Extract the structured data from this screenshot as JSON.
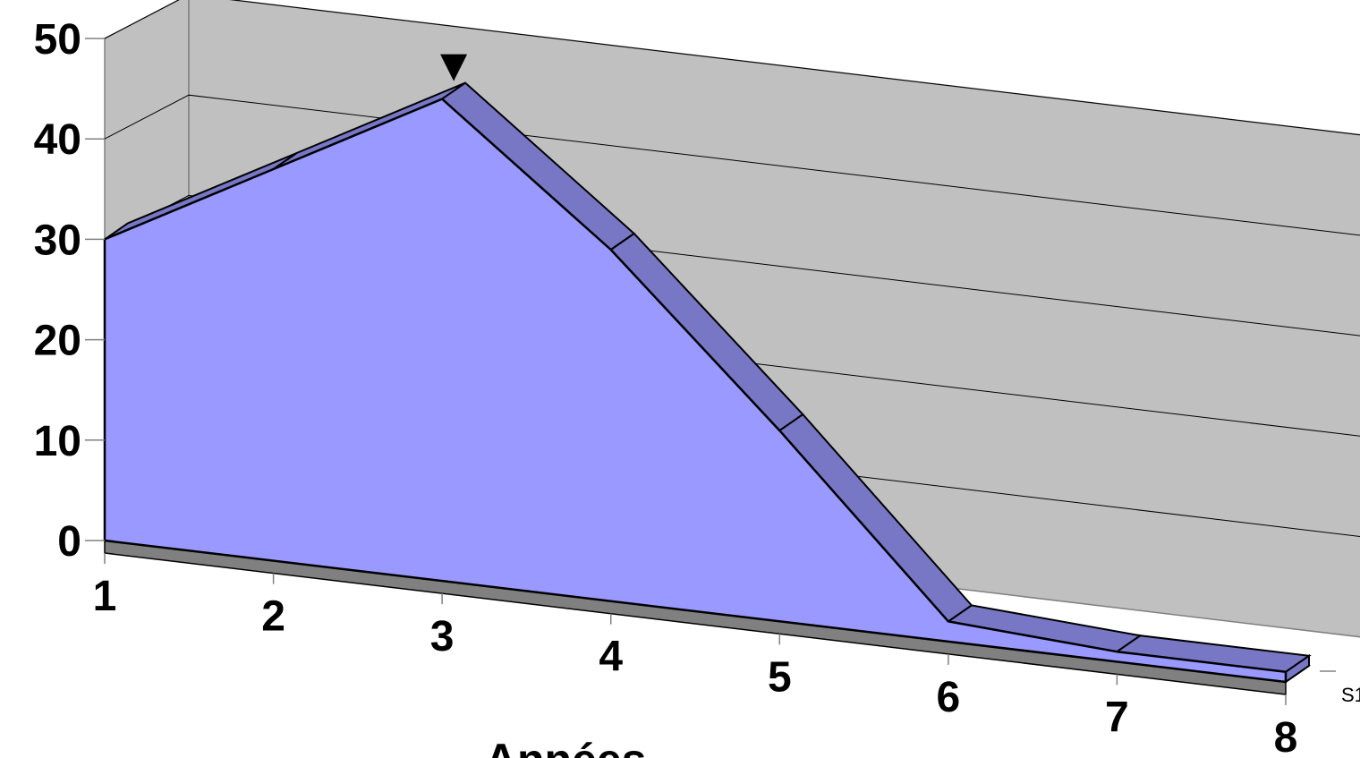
{
  "chart_data": {
    "type": "area",
    "projection": "3d",
    "x": [
      1,
      2,
      3,
      4,
      5,
      6,
      7,
      8
    ],
    "series": [
      {
        "name": "S1",
        "values": [
          30,
          39,
          48,
          35,
          19,
          2,
          1,
          1
        ]
      }
    ],
    "xlabel": "Années",
    "ylabel": "",
    "ylim": [
      0,
      50
    ],
    "y_ticks": [
      0,
      10,
      20,
      30,
      40,
      50
    ],
    "grid": true,
    "colors": {
      "area_front": "#9999ff",
      "area_top": "#7777c6",
      "walls": "#c0c0c0",
      "floor": "#808080",
      "gridline": "#000000"
    },
    "marker": "peak-triangle-marker"
  }
}
